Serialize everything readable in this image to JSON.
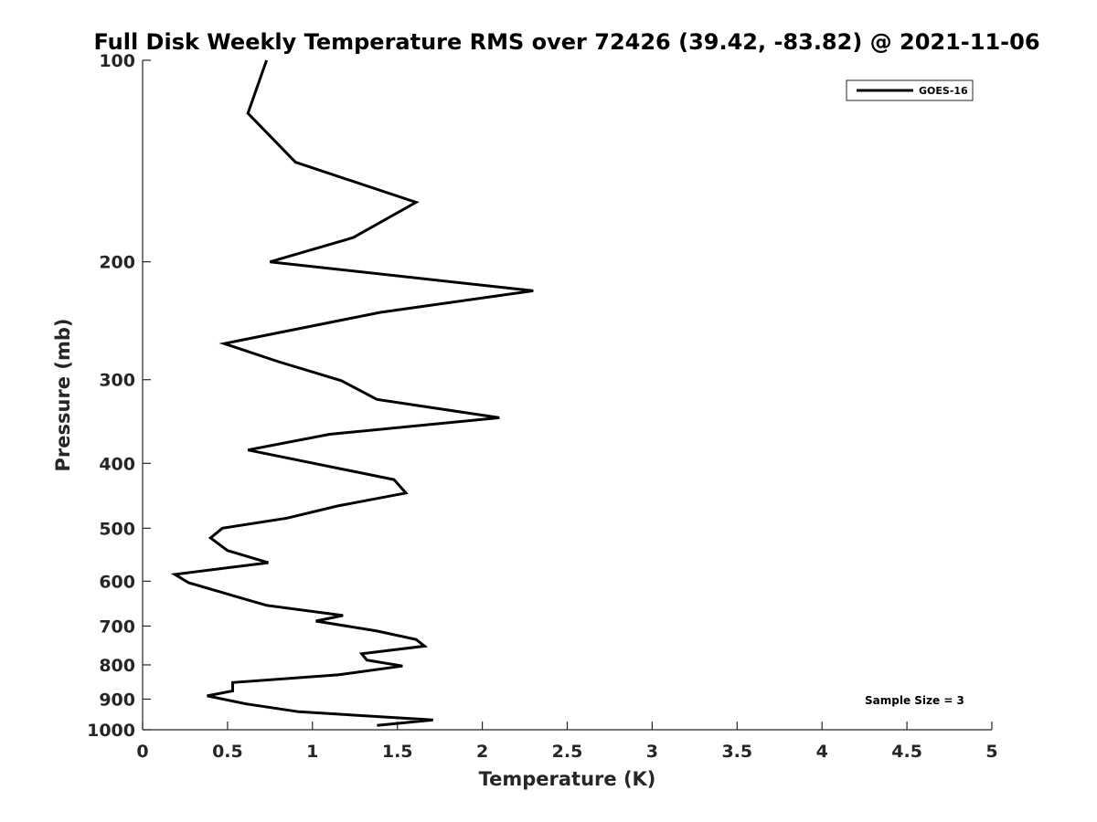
{
  "chart_data": {
    "type": "line",
    "title": "Full Disk Weekly Temperature RMS over 72426 (39.42, -83.82) @ 2021-11-06",
    "xlabel": "Temperature (K)",
    "ylabel": "Pressure (mb)",
    "xlim": [
      0,
      5
    ],
    "ylim": [
      100,
      1000
    ],
    "y_scale": "log",
    "y_reversed": true,
    "x_ticks": [
      "0",
      "0.5",
      "1",
      "1.5",
      "2",
      "2.5",
      "3",
      "3.5",
      "4",
      "4.5",
      "5"
    ],
    "y_ticks": [
      "100",
      "200",
      "300",
      "400",
      "500",
      "600",
      "700",
      "800",
      "900",
      "1000"
    ],
    "grid": false,
    "legend_position": "top-right",
    "series": [
      {
        "name": "GOES-16",
        "color": "#000000",
        "points": [
          [
            0.73,
            100
          ],
          [
            0.62,
            120
          ],
          [
            0.9,
            142
          ],
          [
            1.61,
            163
          ],
          [
            1.24,
            184
          ],
          [
            0.75,
            200
          ],
          [
            2.3,
            221
          ],
          [
            1.4,
            238
          ],
          [
            0.48,
            265
          ],
          [
            0.8,
            282
          ],
          [
            1.17,
            301
          ],
          [
            1.38,
            321
          ],
          [
            2.1,
            342
          ],
          [
            1.1,
            362
          ],
          [
            0.62,
            382
          ],
          [
            1.48,
            423
          ],
          [
            1.55,
            443
          ],
          [
            1.15,
            463
          ],
          [
            0.85,
            483
          ],
          [
            0.47,
            500
          ],
          [
            0.4,
            517
          ],
          [
            0.5,
            540
          ],
          [
            0.74,
            563
          ],
          [
            0.19,
            586
          ],
          [
            0.27,
            603
          ],
          [
            0.73,
            652
          ],
          [
            1.18,
            675
          ],
          [
            1.02,
            688
          ],
          [
            1.38,
            712
          ],
          [
            1.61,
            733
          ],
          [
            1.66,
            750
          ],
          [
            1.29,
            770
          ],
          [
            1.32,
            787
          ],
          [
            1.53,
            803
          ],
          [
            1.15,
            828
          ],
          [
            0.53,
            850
          ],
          [
            0.53,
            875
          ],
          [
            0.38,
            890
          ],
          [
            0.61,
            915
          ],
          [
            0.92,
            940
          ],
          [
            1.71,
            967
          ],
          [
            1.38,
            985
          ]
        ]
      }
    ],
    "annotation": "Sample Size = 3"
  }
}
